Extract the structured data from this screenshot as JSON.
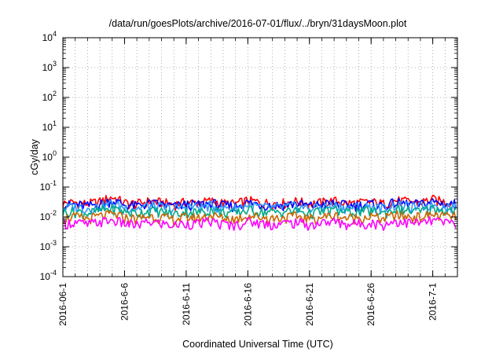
{
  "chart_data": {
    "type": "line",
    "title": "/data/run/goesPlots/archive/2016-07-01/flux/../bryn/31daysMoon.plot",
    "xlabel": "Coordinated Universal Time (UTC)",
    "ylabel": "cGy/day",
    "yscale": "log",
    "ylim": [
      0.0001,
      10000
    ],
    "xlim": [
      "2016-06-01",
      "2016-07-03"
    ],
    "grid": true,
    "legend": "none",
    "y_ticks": [
      {
        "value": 0.0001,
        "mantissa": "10",
        "exponent": "-4"
      },
      {
        "value": 0.001,
        "mantissa": "10",
        "exponent": "-3"
      },
      {
        "value": 0.01,
        "mantissa": "10",
        "exponent": "-2"
      },
      {
        "value": 0.1,
        "mantissa": "10",
        "exponent": "-1"
      },
      {
        "value": 1,
        "mantissa": "10",
        "exponent": "0"
      },
      {
        "value": 10,
        "mantissa": "10",
        "exponent": "1"
      },
      {
        "value": 100,
        "mantissa": "10",
        "exponent": "2"
      },
      {
        "value": 1000,
        "mantissa": "10",
        "exponent": "3"
      },
      {
        "value": 10000,
        "mantissa": "10",
        "exponent": "4"
      }
    ],
    "x_ticks": [
      "2016-06-1",
      "2016-6-6",
      "2016-6-11",
      "2016-6-16",
      "2016-6-21",
      "2016-6-26",
      "2016-7-1"
    ],
    "x_tick_dates": [
      "2016-06-01",
      "2016-06-06",
      "2016-06-11",
      "2016-06-16",
      "2016-06-21",
      "2016-06-26",
      "2016-07-01"
    ],
    "x": [
      "2016-06-01",
      "2016-06-02",
      "2016-06-03",
      "2016-06-04",
      "2016-06-05",
      "2016-06-06",
      "2016-06-07",
      "2016-06-08",
      "2016-06-09",
      "2016-06-10",
      "2016-06-11",
      "2016-06-12",
      "2016-06-13",
      "2016-06-14",
      "2016-06-15",
      "2016-06-16",
      "2016-06-17",
      "2016-06-18",
      "2016-06-19",
      "2016-06-20",
      "2016-06-21",
      "2016-06-22",
      "2016-06-23",
      "2016-06-24",
      "2016-06-25",
      "2016-06-26",
      "2016-06-27",
      "2016-06-28",
      "2016-06-29",
      "2016-06-30",
      "2016-07-01",
      "2016-07-02"
    ],
    "series": [
      {
        "color": "#ff0000",
        "values": [
          0.028,
          0.03,
          0.027,
          0.032,
          0.045,
          0.029,
          0.027,
          0.033,
          0.03,
          0.026,
          0.031,
          0.029,
          0.034,
          0.028,
          0.027,
          0.035,
          0.03,
          0.028,
          0.029,
          0.033,
          0.027,
          0.03,
          0.034,
          0.028,
          0.029,
          0.031,
          0.027,
          0.035,
          0.032,
          0.03,
          0.038,
          0.031
        ]
      },
      {
        "color": "#0000ff",
        "values": [
          0.024,
          0.026,
          0.023,
          0.027,
          0.035,
          0.025,
          0.023,
          0.028,
          0.026,
          0.022,
          0.026,
          0.025,
          0.029,
          0.024,
          0.023,
          0.03,
          0.026,
          0.024,
          0.025,
          0.028,
          0.023,
          0.026,
          0.029,
          0.024,
          0.025,
          0.027,
          0.023,
          0.03,
          0.027,
          0.026,
          0.032,
          0.027
        ]
      },
      {
        "color": "#3399ff",
        "values": [
          0.02,
          0.022,
          0.019,
          0.022,
          0.028,
          0.021,
          0.019,
          0.023,
          0.021,
          0.018,
          0.022,
          0.021,
          0.024,
          0.02,
          0.019,
          0.025,
          0.021,
          0.02,
          0.021,
          0.023,
          0.019,
          0.021,
          0.024,
          0.02,
          0.021,
          0.022,
          0.019,
          0.025,
          0.022,
          0.021,
          0.026,
          0.022
        ]
      },
      {
        "color": "#00aa88",
        "values": [
          0.014,
          0.015,
          0.013,
          0.016,
          0.019,
          0.015,
          0.013,
          0.016,
          0.015,
          0.012,
          0.015,
          0.014,
          0.017,
          0.014,
          0.013,
          0.017,
          0.015,
          0.014,
          0.015,
          0.016,
          0.013,
          0.015,
          0.017,
          0.014,
          0.015,
          0.016,
          0.013,
          0.018,
          0.016,
          0.015,
          0.019,
          0.016
        ]
      },
      {
        "color": "#cc6600",
        "values": [
          0.009,
          0.01,
          0.0085,
          0.0105,
          0.012,
          0.0095,
          0.0085,
          0.0105,
          0.0095,
          0.008,
          0.0098,
          0.0092,
          0.011,
          0.009,
          0.0085,
          0.011,
          0.0098,
          0.009,
          0.0095,
          0.0105,
          0.0085,
          0.0098,
          0.011,
          0.009,
          0.0095,
          0.0102,
          0.0085,
          0.0115,
          0.0102,
          0.0098,
          0.012,
          0.0102
        ]
      },
      {
        "color": "#ff00ff",
        "values": [
          0.006,
          0.0065,
          0.0055,
          0.0068,
          0.0075,
          0.006,
          0.0052,
          0.0066,
          0.006,
          0.005,
          0.0062,
          0.0058,
          0.007,
          0.0056,
          0.0053,
          0.007,
          0.0062,
          0.0056,
          0.006,
          0.0066,
          0.0053,
          0.0062,
          0.007,
          0.0056,
          0.006,
          0.0064,
          0.0053,
          0.0072,
          0.0064,
          0.0062,
          0.0075,
          0.0064
        ]
      }
    ]
  }
}
